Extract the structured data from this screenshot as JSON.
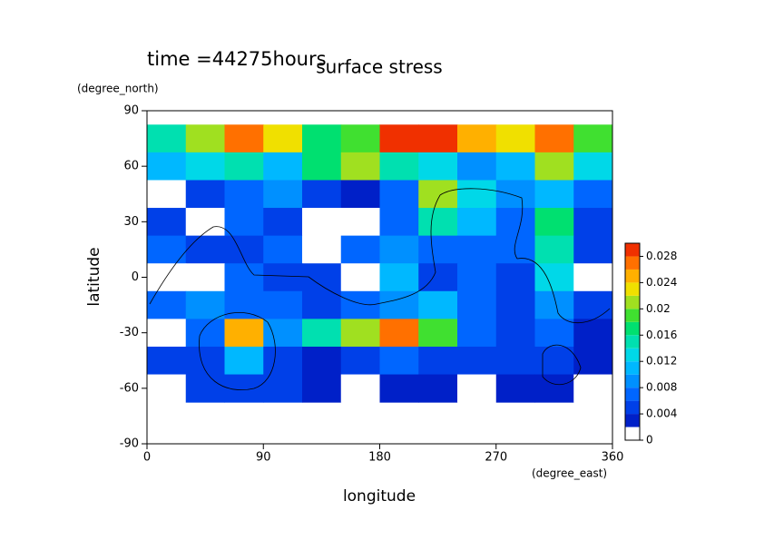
{
  "chart_data": {
    "type": "contour",
    "title": "surface stress",
    "subtitle": "time =44275hours",
    "x_label": "longitude",
    "x_unit": "(degree_east)",
    "y_label": "latitude",
    "y_unit": "(degree_north)",
    "xlim": [
      0,
      360
    ],
    "xticks": [
      0,
      90,
      180,
      270,
      360
    ],
    "ylim": [
      -90,
      90
    ],
    "yticks": [
      -90,
      -60,
      -30,
      0,
      30,
      60,
      90
    ],
    "lon": [
      15,
      45,
      75,
      105,
      135,
      165,
      195,
      225,
      255,
      285,
      315,
      345
    ],
    "lat": [
      75,
      60,
      45,
      30,
      15,
      0,
      -15,
      -30,
      -45,
      -60
    ],
    "z": [
      [
        0.014,
        0.02,
        0.026,
        0.022,
        0.016,
        0.018,
        0.028,
        0.03,
        0.024,
        0.022,
        0.026,
        0.018
      ],
      [
        0.01,
        0.012,
        0.014,
        0.01,
        0.016,
        0.02,
        0.014,
        0.012,
        0.008,
        0.01,
        0.02,
        0.012
      ],
      [
        0,
        0.004,
        0.006,
        0.008,
        0.004,
        0.002,
        0.006,
        0.02,
        0.012,
        0.008,
        0.01,
        0.006
      ],
      [
        0.004,
        0,
        0.006,
        0.004,
        0,
        0,
        0.006,
        0.014,
        0.01,
        0.006,
        0.016,
        0.004
      ],
      [
        0.006,
        0.004,
        0.004,
        0.006,
        0,
        0.006,
        0.008,
        0.006,
        0.006,
        0.006,
        0.014,
        0.004
      ],
      [
        0,
        0,
        0.006,
        0.004,
        0.004,
        0,
        0.01,
        0.004,
        0.006,
        0.004,
        0.012,
        0
      ],
      [
        0.006,
        0.008,
        0.006,
        0.006,
        0.004,
        0.006,
        0.008,
        0.01,
        0.006,
        0.004,
        0.008,
        0.004
      ],
      [
        0,
        0.006,
        0.024,
        0.008,
        0.014,
        0.02,
        0.026,
        0.018,
        0.006,
        0.004,
        0.006,
        0.002
      ],
      [
        0.004,
        0.004,
        0.01,
        0.004,
        0.002,
        0.004,
        0.006,
        0.004,
        0.004,
        0.004,
        0.004,
        0.002
      ],
      [
        0,
        0.004,
        0.004,
        0.004,
        0.002,
        0,
        0.002,
        0.002,
        0,
        0.002,
        0.002,
        0
      ]
    ],
    "levels": [
      0,
      0.002,
      0.004,
      0.006,
      0.008,
      0.01,
      0.012,
      0.014,
      0.016,
      0.018,
      0.02,
      0.022,
      0.024,
      0.026,
      0.028,
      0.03
    ],
    "colors": [
      "#ffffff",
      "#0020c8",
      "#0040e8",
      "#0066ff",
      "#0090ff",
      "#00b8ff",
      "#00d8e8",
      "#00e0b0",
      "#00e070",
      "#40e030",
      "#a0e020",
      "#f0e000",
      "#ffb000",
      "#ff7000",
      "#f03000"
    ],
    "cticks": [
      0,
      0.004,
      0.008,
      0.012,
      0.016,
      0.02,
      0.024,
      0.028
    ]
  }
}
